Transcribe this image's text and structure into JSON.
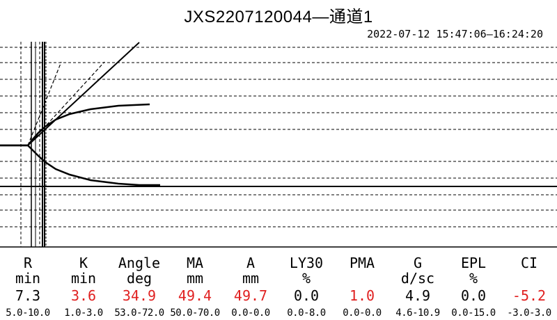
{
  "title": "JXS2207120044—通道1",
  "time_range": "2022-07-12 15:47:06—16:24:20",
  "colors": {
    "line": "#000000",
    "abnormal": "#e02020",
    "normal": "#000000"
  },
  "chart_data": {
    "type": "line",
    "title": "JXS2207120044—通道1",
    "subtitle": "2022-07-12 15:47:06—16:24:20",
    "xlabel": "",
    "ylabel": "",
    "grid": true,
    "series": [
      {
        "role": "upper-trace",
        "points": [
          [
            0,
            0
          ],
          [
            40,
            0
          ],
          [
            48,
            -10
          ],
          [
            55,
            -18
          ],
          [
            65,
            -27
          ],
          [
            80,
            -37
          ],
          [
            100,
            -45
          ],
          [
            130,
            -52
          ],
          [
            170,
            -57
          ],
          [
            215,
            -59
          ]
        ]
      },
      {
        "role": "lower-trace",
        "points": [
          [
            0,
            0
          ],
          [
            40,
            0
          ],
          [
            48,
            8
          ],
          [
            55,
            15
          ],
          [
            65,
            24
          ],
          [
            80,
            34
          ],
          [
            100,
            42
          ],
          [
            130,
            50
          ],
          [
            170,
            55
          ],
          [
            200,
            57
          ],
          [
            230,
            57
          ]
        ]
      },
      {
        "role": "angle-line-solid",
        "points": [
          [
            40,
            0
          ],
          [
            200,
            -148
          ]
        ]
      },
      {
        "role": "angle-line-dashed",
        "points": [
          [
            40,
            0
          ],
          [
            150,
            -120
          ]
        ]
      },
      {
        "role": "angle-line-dashed-steep",
        "points": [
          [
            40,
            0
          ],
          [
            88,
            -120
          ]
        ]
      }
    ]
  },
  "parameters": [
    {
      "name": "R",
      "unit": "min",
      "value": "7.3",
      "range": "5.0-10.0",
      "abnormal": false
    },
    {
      "name": "K",
      "unit": "min",
      "value": "3.6",
      "range": "1.0-3.0",
      "abnormal": true
    },
    {
      "name": "Angle",
      "unit": "deg",
      "value": "34.9",
      "range": "53.0-72.0",
      "abnormal": true
    },
    {
      "name": "MA",
      "unit": "mm",
      "value": "49.4",
      "range": "50.0-70.0",
      "abnormal": true
    },
    {
      "name": "A",
      "unit": "mm",
      "value": "49.7",
      "range": "0.0-0.0",
      "abnormal": true
    },
    {
      "name": "LY30",
      "unit": "%",
      "value": "0.0",
      "range": "0.0-8.0",
      "abnormal": false
    },
    {
      "name": "PMA",
      "unit": "",
      "value": "1.0",
      "range": "0.0-0.0",
      "abnormal": true
    },
    {
      "name": "G",
      "unit": "d/sc",
      "value": "4.9",
      "range": "4.6-10.9",
      "abnormal": false
    },
    {
      "name": "EPL",
      "unit": "%",
      "value": "0.0",
      "range": "0.0-15.0",
      "abnormal": false
    },
    {
      "name": "CI",
      "unit": "",
      "value": "-5.2",
      "range": "-3.0-3.0",
      "abnormal": true
    }
  ]
}
